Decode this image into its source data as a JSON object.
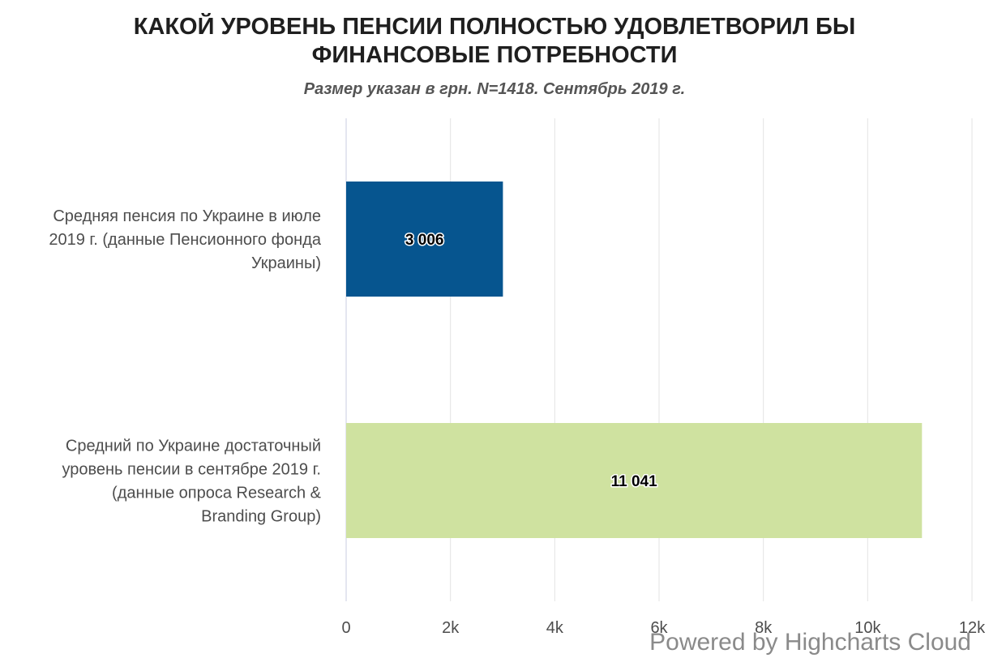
{
  "chart_data": {
    "type": "bar",
    "orientation": "horizontal",
    "title_lines": [
      "КАКОЙ УРОВЕНЬ ПЕНСИИ ПОЛНОСТЬЮ УДОВЛЕТВОРИЛ БЫ",
      "ФИНАНСОВЫЕ ПОТРЕБНОСТИ"
    ],
    "subtitle": "Размер указан в грн. N=1418. Сентябрь 2019 г.",
    "categories": [
      {
        "label_lines": [
          "Средняя пенсия по Украине в июле",
          "2019 г. (данные Пенсионного фонда",
          "Украины)"
        ]
      },
      {
        "label_lines": [
          "Средний по Украине достаточный",
          "уровень пенсии в сентябре 2019 г.",
          "(данные опроса Research &",
          "Branding Group)"
        ]
      }
    ],
    "values": [
      3006,
      11041
    ],
    "value_labels": [
      "3 006",
      "11 041"
    ],
    "bar_colors": [
      "#06558f",
      "#cfe2a0"
    ],
    "xlim": [
      0,
      12000
    ],
    "x_ticks": [
      0,
      2000,
      4000,
      6000,
      8000,
      10000,
      12000
    ],
    "x_tick_labels": [
      "0",
      "2k",
      "4k",
      "6k",
      "8k",
      "10k",
      "12k"
    ],
    "grid": true,
    "legend": "none",
    "xlabel": "",
    "ylabel": ""
  },
  "credits": "Powered by Highcharts Cloud"
}
